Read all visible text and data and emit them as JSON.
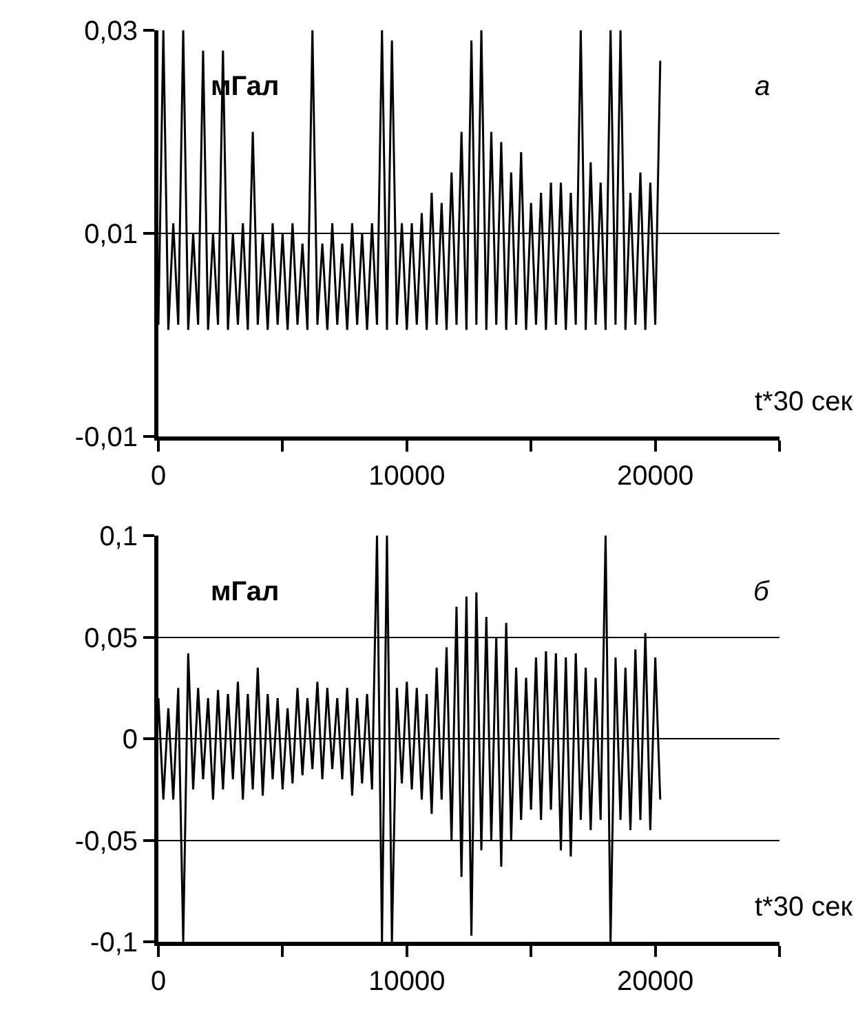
{
  "chart_data": [
    {
      "type": "line",
      "ylabel": "мГал",
      "xlabel": "t*30 сек",
      "annotations": [
        "а"
      ],
      "grid": "y",
      "xlim": [
        0,
        25000
      ],
      "xticks": [
        0,
        {
          "value": 5000,
          "label": null
        },
        10000,
        {
          "value": 15000,
          "label": null
        },
        20000,
        {
          "value": 25000,
          "label": null
        }
      ],
      "ylim": [
        -0.01,
        0.03
      ],
      "yticks": [
        {
          "value": -0.01,
          "label": "-0,01"
        },
        {
          "value": 0.01,
          "label": "0,01"
        },
        {
          "value": 0.03,
          "label": "0,03"
        }
      ],
      "series": [
        {
          "color": "#000000",
          "x": [
            0,
            200,
            400,
            600,
            800,
            1000,
            1200,
            1400,
            1600,
            1800,
            2000,
            2200,
            2400,
            2600,
            2800,
            3000,
            3200,
            3400,
            3600,
            3800,
            4000,
            4200,
            4400,
            4600,
            4800,
            5000,
            5200,
            5400,
            5600,
            5800,
            6000,
            6200,
            6400,
            6600,
            6800,
            7000,
            7200,
            7400,
            7600,
            7800,
            8000,
            8200,
            8400,
            8600,
            8800,
            9000,
            9200,
            9400,
            9600,
            9800,
            10000,
            10200,
            10400,
            10600,
            10800,
            11000,
            11200,
            11400,
            11600,
            11800,
            12000,
            12200,
            12400,
            12600,
            12800,
            13000,
            13200,
            13400,
            13600,
            13800,
            14000,
            14200,
            14400,
            14600,
            14800,
            15000,
            15200,
            15400,
            15600,
            15800,
            16000,
            16200,
            16400,
            16600,
            16800,
            17000,
            17200,
            17400,
            17600,
            17800,
            18000,
            18200,
            18400,
            18600,
            18800,
            19000,
            19200,
            19400,
            19600,
            19800,
            20000,
            20200
          ],
          "values": [
            0.001,
            0.03,
            0.0005,
            0.011,
            0.001,
            0.03,
            0.0005,
            0.01,
            0.001,
            0.028,
            0.0005,
            0.01,
            0.001,
            0.028,
            0.0005,
            0.01,
            0.001,
            0.011,
            0.0005,
            0.02,
            0.001,
            0.01,
            0.0005,
            0.011,
            0.001,
            0.01,
            0.0005,
            0.011,
            0.001,
            0.009,
            0.0005,
            0.03,
            0.001,
            0.009,
            0.0005,
            0.011,
            0.001,
            0.009,
            0.0005,
            0.011,
            0.001,
            0.01,
            0.0005,
            0.011,
            0.001,
            0.03,
            0.0005,
            0.029,
            0.001,
            0.011,
            0.0005,
            0.011,
            0.001,
            0.012,
            0.0005,
            0.014,
            0.001,
            0.013,
            0.0005,
            0.016,
            0.001,
            0.02,
            0.0005,
            0.029,
            0.001,
            0.03,
            0.0005,
            0.02,
            0.001,
            0.019,
            0.0005,
            0.016,
            0.001,
            0.018,
            0.0005,
            0.013,
            0.001,
            0.014,
            0.0005,
            0.015,
            0.001,
            0.015,
            0.0005,
            0.014,
            0.001,
            0.03,
            0.0005,
            0.017,
            0.001,
            0.015,
            0.0005,
            0.03,
            0.001,
            0.03,
            0.0005,
            0.014,
            0.001,
            0.016,
            0.0005,
            0.015,
            0.001,
            0.027
          ]
        }
      ]
    },
    {
      "type": "line",
      "ylabel": "мГал",
      "xlabel": "t*30 сек",
      "annotations": [
        "б"
      ],
      "grid": "y",
      "xlim": [
        0,
        25000
      ],
      "xticks": [
        0,
        {
          "value": 5000,
          "label": null
        },
        10000,
        {
          "value": 15000,
          "label": null
        },
        20000,
        {
          "value": 25000,
          "label": null
        }
      ],
      "ylim": [
        -0.1,
        0.1
      ],
      "yticks": [
        {
          "value": -0.1,
          "label": "-0,1"
        },
        {
          "value": -0.05,
          "label": "-0,05"
        },
        0,
        {
          "value": 0.05,
          "label": "0,05"
        },
        {
          "value": 0.1,
          "label": "0,1"
        }
      ],
      "series": [
        {
          "color": "#000000",
          "x": [
            0,
            200,
            400,
            600,
            800,
            1000,
            1200,
            1400,
            1600,
            1800,
            2000,
            2200,
            2400,
            2600,
            2800,
            3000,
            3200,
            3400,
            3600,
            3800,
            4000,
            4200,
            4400,
            4600,
            4800,
            5000,
            5200,
            5400,
            5600,
            5800,
            6000,
            6200,
            6400,
            6600,
            6800,
            7000,
            7200,
            7400,
            7600,
            7800,
            8000,
            8200,
            8400,
            8600,
            8800,
            9000,
            9200,
            9400,
            9600,
            9800,
            10000,
            10200,
            10400,
            10600,
            10800,
            11000,
            11200,
            11400,
            11600,
            11800,
            12000,
            12200,
            12400,
            12600,
            12800,
            13000,
            13200,
            13400,
            13600,
            13800,
            14000,
            14200,
            14400,
            14600,
            14800,
            15000,
            15200,
            15400,
            15600,
            15800,
            16000,
            16200,
            16400,
            16600,
            16800,
            17000,
            17200,
            17400,
            17600,
            17800,
            18000,
            18200,
            18400,
            18600,
            18800,
            19000,
            19200,
            19400,
            19600,
            19800,
            20000,
            20200
          ],
          "values": [
            0.02,
            -0.03,
            0.015,
            -0.03,
            0.025,
            -0.1,
            0.042,
            -0.025,
            0.025,
            -0.02,
            0.02,
            -0.03,
            0.024,
            -0.025,
            0.022,
            -0.02,
            0.028,
            -0.03,
            0.022,
            -0.025,
            0.035,
            -0.028,
            0.022,
            -0.02,
            0.02,
            -0.025,
            0.015,
            -0.022,
            0.025,
            -0.018,
            0.02,
            -0.015,
            0.028,
            -0.02,
            0.025,
            -0.015,
            0.02,
            -0.02,
            0.025,
            -0.028,
            0.02,
            -0.022,
            0.022,
            -0.025,
            0.1,
            -0.1,
            0.1,
            -0.1,
            0.025,
            -0.022,
            0.028,
            -0.025,
            0.025,
            -0.03,
            0.022,
            -0.037,
            0.035,
            -0.03,
            0.045,
            -0.05,
            0.065,
            -0.068,
            0.07,
            -0.097,
            0.072,
            -0.055,
            0.06,
            -0.05,
            0.05,
            -0.063,
            0.057,
            -0.05,
            0.035,
            -0.04,
            0.03,
            -0.035,
            0.04,
            -0.04,
            0.043,
            -0.035,
            0.042,
            -0.055,
            0.04,
            -0.058,
            0.042,
            -0.04,
            0.035,
            -0.045,
            0.03,
            -0.04,
            0.1,
            -0.1,
            0.04,
            -0.04,
            0.035,
            -0.045,
            0.044,
            -0.04,
            0.052,
            -0.045,
            0.04,
            -0.03
          ]
        }
      ]
    }
  ]
}
